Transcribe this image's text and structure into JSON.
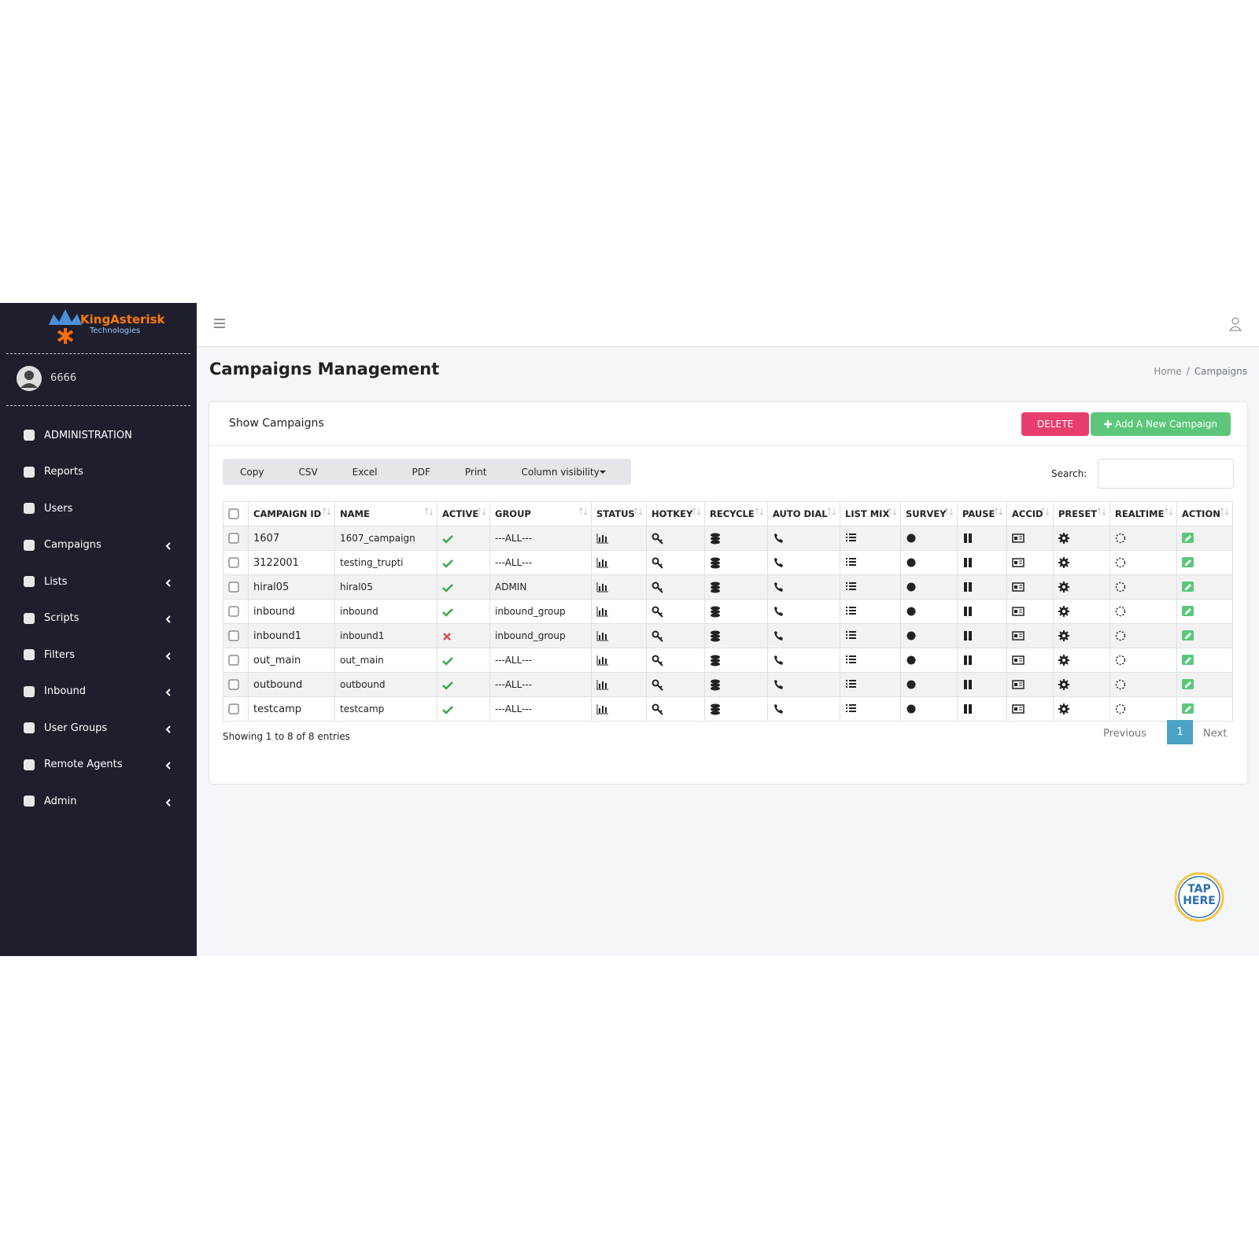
{
  "sidebar": {
    "logo": {
      "brand": "KingAsterisk",
      "sub": "Technologies"
    },
    "user": "6666",
    "menu": [
      {
        "label": "ADMINISTRATION",
        "submenu": false
      },
      {
        "label": "Reports",
        "submenu": false
      },
      {
        "label": "Users",
        "submenu": false
      },
      {
        "label": "Campaigns",
        "submenu": true
      },
      {
        "label": "Lists",
        "submenu": true
      },
      {
        "label": "Scripts",
        "submenu": true
      },
      {
        "label": "Filters",
        "submenu": true
      },
      {
        "label": "Inbound",
        "submenu": true
      },
      {
        "label": "User Groups",
        "submenu": true
      },
      {
        "label": "Remote Agents",
        "submenu": true
      },
      {
        "label": "Admin",
        "submenu": true
      }
    ]
  },
  "header": {
    "title": "Campaigns Management",
    "breadcrumb": [
      "Home",
      "Campaigns"
    ]
  },
  "card": {
    "title": "Show Campaigns",
    "delete": "DELETE",
    "add": "Add A New Campaign",
    "exports": [
      "Copy",
      "CSV",
      "Excel",
      "PDF",
      "Print",
      "Column visibility"
    ],
    "search_label": "Search:"
  },
  "table": {
    "columns": [
      "CAMPAIGN ID",
      "NAME",
      "ACTIVE",
      "GROUP",
      "STATUS",
      "HOTKEY",
      "RECYCLE",
      "AUTO DIAL",
      "LIST MIX",
      "SURVEY",
      "PAUSE",
      "ACCID",
      "PRESET",
      "REALTIME",
      "ACTION"
    ],
    "rows": [
      {
        "id": "1607",
        "name": "1607_campaign",
        "active": true,
        "group": "---ALL---"
      },
      {
        "id": "3122001",
        "name": "testing_trupti",
        "active": true,
        "group": "---ALL---"
      },
      {
        "id": "hiral05",
        "name": "hiral05",
        "active": true,
        "group": "ADMIN"
      },
      {
        "id": "inbound",
        "name": "inbound",
        "active": true,
        "group": "inbound_group"
      },
      {
        "id": "inbound1",
        "name": "inbound1",
        "active": false,
        "group": "inbound_group"
      },
      {
        "id": "out_main",
        "name": "out_main",
        "active": true,
        "group": "---ALL---"
      },
      {
        "id": "outbound",
        "name": "outbound",
        "active": true,
        "group": "---ALL---"
      },
      {
        "id": "testcamp",
        "name": "testcamp",
        "active": true,
        "group": "---ALL---"
      }
    ]
  },
  "footer": {
    "info": "Showing 1 to 8 of 8 entries",
    "previous": "Previous",
    "page": "1",
    "next": "Next"
  },
  "badge": {
    "line1": "TAP",
    "line2": "HERE"
  }
}
